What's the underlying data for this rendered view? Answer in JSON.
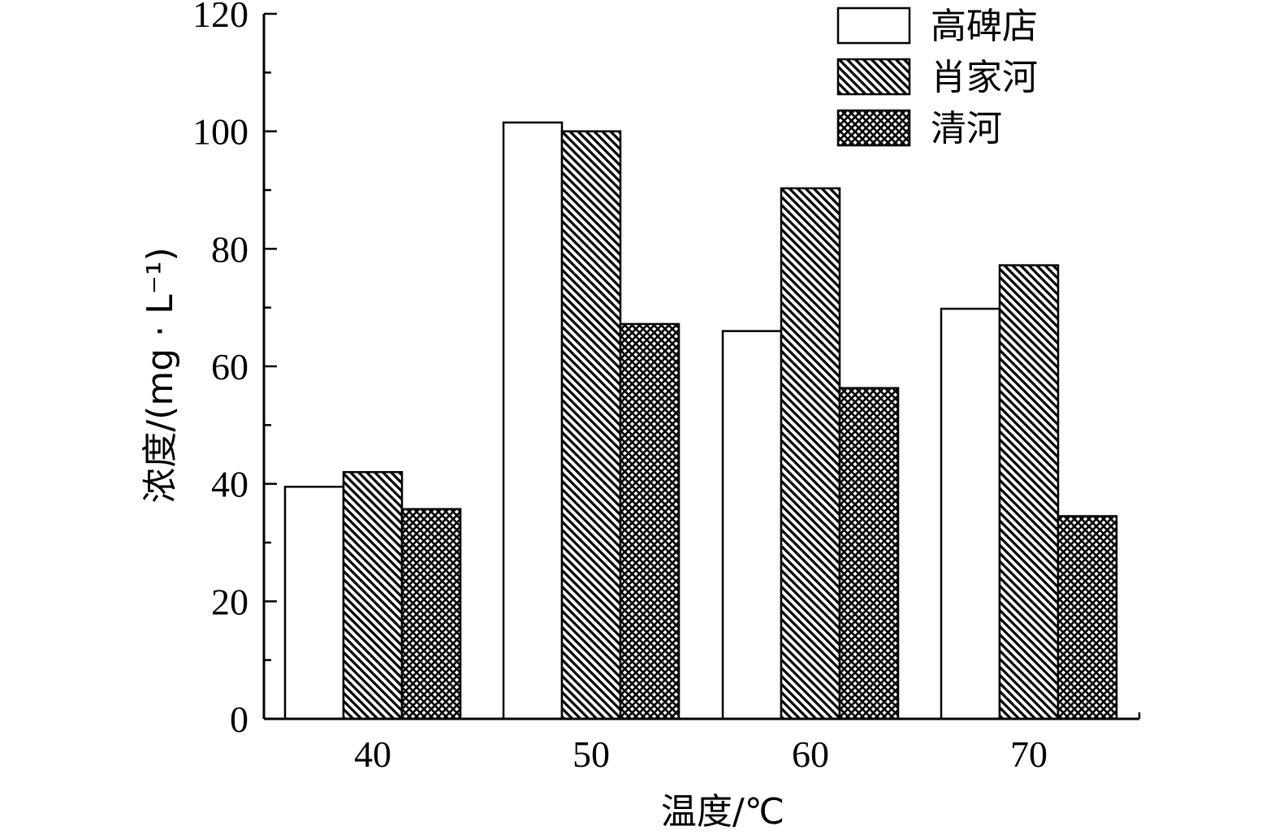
{
  "chart_data": {
    "type": "bar",
    "categories": [
      "40",
      "50",
      "60",
      "70"
    ],
    "series": [
      {
        "name": "高碑店",
        "values": [
          39.5,
          101.5,
          66,
          69.8
        ],
        "pattern": "none"
      },
      {
        "name": "肖家河",
        "values": [
          42,
          100,
          90.3,
          77.2
        ],
        "pattern": "diagonal"
      },
      {
        "name": "清河",
        "values": [
          35.7,
          67.2,
          56.3,
          34.5
        ],
        "pattern": "crosshatch"
      }
    ],
    "xlabel": "温度/℃",
    "ylabel": "浓度/(mg · L⁻¹)",
    "ylim": [
      0,
      120
    ],
    "yticks": [
      "0",
      "20",
      "40",
      "60",
      "80",
      "100",
      "120"
    ],
    "grid": false,
    "legend_position": "top-right"
  }
}
